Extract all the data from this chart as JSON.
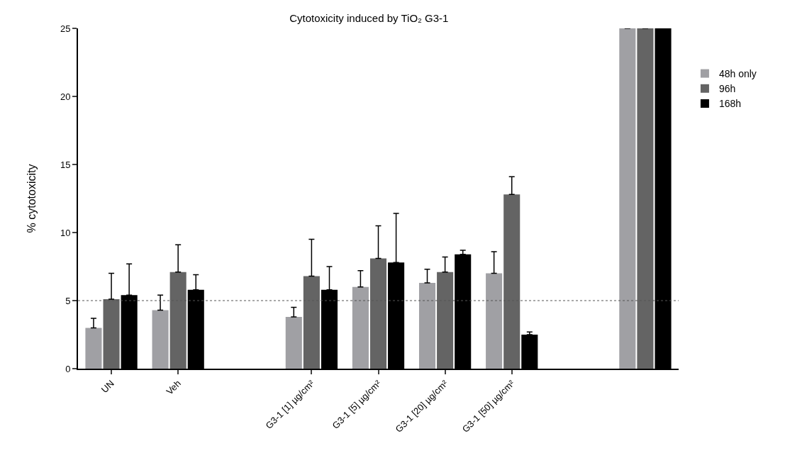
{
  "chart_data": {
    "type": "bar",
    "title": "Cytotoxicity induced by TiO₂ G3-1",
    "ylabel": "% cytotoxicity",
    "categories": [
      "UN",
      "Veh",
      null,
      "G3-1 [1] µg/cm²",
      "G3-1 [5] µg/cm²",
      "G3-1 [20] µg/cm²",
      "G3-1 [50] µg/cm²",
      null,
      null
    ],
    "series": [
      {
        "name": "48h only",
        "color": "#a0a0a4",
        "values": [
          3.0,
          4.3,
          null,
          3.8,
          6.0,
          6.3,
          7.0,
          null,
          25
        ],
        "errors": [
          [
            3.0,
            3.7
          ],
          [
            4.3,
            5.4
          ],
          null,
          [
            3.8,
            4.5
          ],
          [
            6.0,
            7.2
          ],
          [
            6.3,
            7.3
          ],
          [
            7.0,
            8.6
          ],
          null,
          null
        ]
      },
      {
        "name": "96h",
        "color": "#646464",
        "values": [
          5.1,
          7.1,
          null,
          6.8,
          8.1,
          7.1,
          12.8,
          null,
          25
        ],
        "errors": [
          [
            5.1,
            7.0
          ],
          [
            7.1,
            9.1
          ],
          null,
          [
            6.8,
            9.5
          ],
          [
            8.1,
            10.5
          ],
          [
            7.1,
            8.2
          ],
          [
            12.8,
            14.1
          ],
          null,
          null
        ]
      },
      {
        "name": "168h",
        "color": "#000000",
        "values": [
          5.4,
          5.8,
          null,
          5.8,
          7.8,
          8.4,
          2.5,
          null,
          25
        ],
        "errors": [
          [
            5.4,
            7.7
          ],
          [
            5.8,
            6.9
          ],
          null,
          [
            5.8,
            7.5
          ],
          [
            7.8,
            11.4
          ],
          [
            8.4,
            8.7
          ],
          [
            2.5,
            2.7
          ],
          null,
          null
        ]
      }
    ],
    "ylim": [
      0,
      25
    ],
    "yticks": [
      0,
      5,
      10,
      15,
      20,
      25
    ],
    "grid": false,
    "legend": "top right",
    "ref_lines": [
      {
        "axis": "y",
        "value": 5,
        "line_style": "dotted",
        "color": "#555555"
      }
    ]
  }
}
